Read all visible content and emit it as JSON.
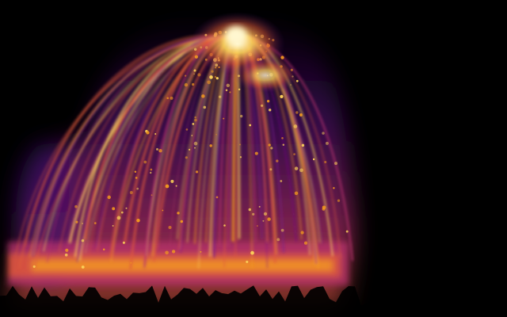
{
  "image": {
    "kind": "heatmap-render",
    "subject": "firework-burst",
    "background_color": "#000000",
    "palette": [
      "#000000",
      "#1b0a3a",
      "#4a1073",
      "#7a1d8c",
      "#b8326e",
      "#e05a3a",
      "#f39a1e",
      "#fcd15a",
      "#fff7d0"
    ]
  }
}
